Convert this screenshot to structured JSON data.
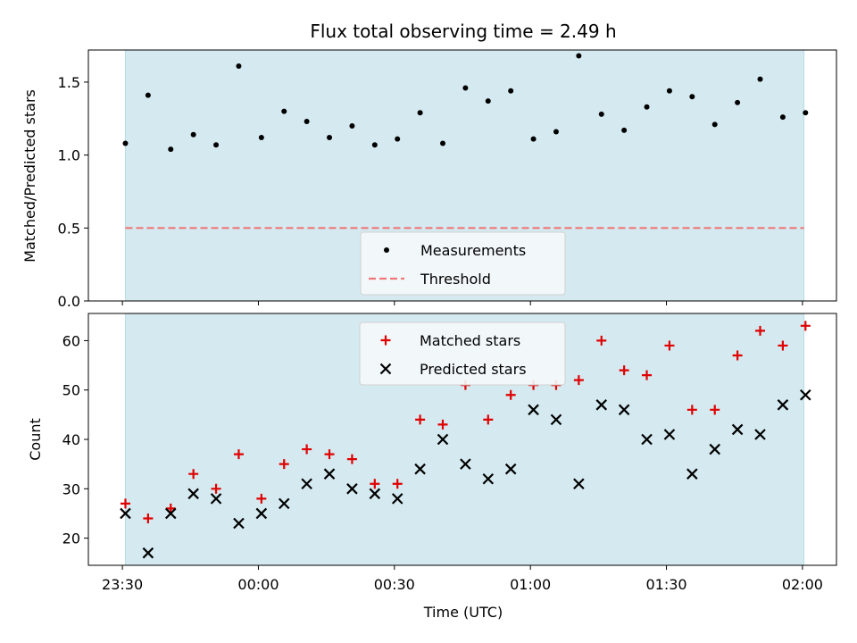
{
  "colors": {
    "shade": "#d4eaf0",
    "shade_edge": "#b9dde6",
    "measurement": "#000000",
    "threshold": "#f07878",
    "matched": "#e00000",
    "predicted": "#000000",
    "legend_bg": "#f5f8fa"
  },
  "chart_data": [
    {
      "type": "scatter",
      "title": "Flux total observing time = 2.49 h",
      "ylabel": "Matched/Predicted stars",
      "xlim": [
        "23:22:30",
        "02:07:30"
      ],
      "ylim": [
        0.0,
        1.72
      ],
      "yticks": [
        0.0,
        0.5,
        1.0,
        1.5
      ],
      "ytick_labels": [
        "0.0",
        "0.5",
        "1.0",
        "1.5"
      ],
      "shaded_span": [
        "23:30:40",
        "02:00:20"
      ],
      "legend_position": "lower center",
      "series": [
        {
          "name": "Measurements",
          "marker": "dot",
          "x": [
            "23:30:40",
            "23:35:40",
            "23:40:40",
            "23:45:40",
            "23:50:40",
            "23:55:40",
            "00:00:40",
            "00:05:40",
            "00:10:40",
            "00:15:40",
            "00:20:40",
            "00:25:40",
            "00:30:40",
            "00:35:40",
            "00:40:40",
            "00:45:40",
            "00:50:40",
            "00:55:40",
            "01:00:40",
            "01:05:40",
            "01:10:40",
            "01:15:40",
            "01:20:40",
            "01:25:40",
            "01:30:40",
            "01:35:40",
            "01:40:40",
            "01:45:40",
            "01:50:40",
            "01:55:40",
            "02:00:40"
          ],
          "y": [
            1.08,
            1.41,
            1.04,
            1.14,
            1.07,
            1.61,
            1.12,
            1.3,
            1.23,
            1.12,
            1.2,
            1.07,
            1.11,
            1.29,
            1.08,
            1.46,
            1.37,
            1.44,
            1.11,
            1.16,
            1.68,
            1.28,
            1.17,
            1.33,
            1.44,
            1.4,
            1.21,
            1.36,
            1.52,
            1.26,
            1.29
          ]
        },
        {
          "name": "Threshold",
          "style": "dashed",
          "x": [
            "23:30:40",
            "02:00:20"
          ],
          "y": [
            0.5,
            0.5
          ]
        }
      ]
    },
    {
      "type": "scatter",
      "xlabel": "Time (UTC)",
      "ylabel": "Count",
      "xlim": [
        "23:22:30",
        "02:07:30"
      ],
      "ylim": [
        14.5,
        65.5
      ],
      "yticks": [
        20,
        30,
        40,
        50,
        60
      ],
      "ytick_labels": [
        "20",
        "30",
        "40",
        "50",
        "60"
      ],
      "xticks": [
        "23:30",
        "00:00",
        "00:30",
        "01:00",
        "01:30",
        "02:00"
      ],
      "xtick_labels": [
        "23:30",
        "00:00",
        "00:30",
        "01:00",
        "01:30",
        "02:00"
      ],
      "shaded_span": [
        "23:30:40",
        "02:00:20"
      ],
      "legend_position": "upper center",
      "series": [
        {
          "name": "Matched stars",
          "marker": "plus",
          "x": [
            "23:30:40",
            "23:35:40",
            "23:40:40",
            "23:45:40",
            "23:50:40",
            "23:55:40",
            "00:00:40",
            "00:05:40",
            "00:10:40",
            "00:15:40",
            "00:20:40",
            "00:25:40",
            "00:30:40",
            "00:35:40",
            "00:40:40",
            "00:45:40",
            "00:50:40",
            "00:55:40",
            "01:00:40",
            "01:05:40",
            "01:10:40",
            "01:15:40",
            "01:20:40",
            "01:25:40",
            "01:30:40",
            "01:35:40",
            "01:40:40",
            "01:45:40",
            "01:50:40",
            "01:55:40",
            "02:00:40"
          ],
          "y": [
            27,
            24,
            26,
            33,
            30,
            37,
            28,
            35,
            38,
            37,
            36,
            31,
            31,
            44,
            43,
            51,
            44,
            49,
            51,
            51,
            52,
            60,
            54,
            53,
            59,
            46,
            46,
            57,
            62,
            59,
            63
          ]
        },
        {
          "name": "Predicted stars",
          "marker": "x",
          "x": [
            "23:30:40",
            "23:35:40",
            "23:40:40",
            "23:45:40",
            "23:50:40",
            "23:55:40",
            "00:00:40",
            "00:05:40",
            "00:10:40",
            "00:15:40",
            "00:20:40",
            "00:25:40",
            "00:30:40",
            "00:35:40",
            "00:40:40",
            "00:45:40",
            "00:50:40",
            "00:55:40",
            "01:00:40",
            "01:05:40",
            "01:10:40",
            "01:15:40",
            "01:20:40",
            "01:25:40",
            "01:30:40",
            "01:35:40",
            "01:40:40",
            "01:45:40",
            "01:50:40",
            "01:55:40",
            "02:00:40"
          ],
          "y": [
            25,
            17,
            25,
            29,
            28,
            23,
            25,
            27,
            31,
            33,
            30,
            29,
            28,
            34,
            40,
            35,
            32,
            34,
            46,
            44,
            31,
            47,
            46,
            40,
            41,
            33,
            38,
            42,
            41,
            47,
            49
          ]
        }
      ]
    }
  ]
}
